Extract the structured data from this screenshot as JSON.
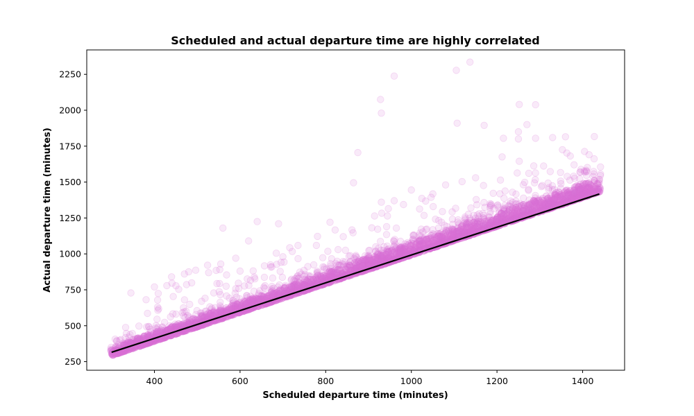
{
  "chart_data": {
    "type": "scatter",
    "title": "Scheduled and actual departure time are highly correlated",
    "xlabel": "Scheduled departure time (minutes)",
    "ylabel": "Actual departure time (minutes)",
    "xlim": [
      242,
      1498
    ],
    "ylim": [
      190,
      2420
    ],
    "xticks": [
      400,
      600,
      800,
      1000,
      1200,
      1400
    ],
    "yticks": [
      250,
      500,
      750,
      1000,
      1250,
      1500,
      1750,
      2000,
      2250
    ],
    "grid": false,
    "colors": {
      "points": "#DA70D6",
      "fit_line": "#000000"
    },
    "point_alpha": 0.15,
    "fit_line": {
      "x": [
        300,
        1439
      ],
      "y": [
        315,
        1417
      ]
    },
    "bulk": {
      "x_start": 300,
      "x_end": 1440,
      "y_at_start": 300,
      "y_at_end": 1440,
      "upward_spread": 60
    },
    "outliers": [
      {
        "x": 1137,
        "y": 2335
      },
      {
        "x": 1105,
        "y": 2278
      },
      {
        "x": 960,
        "y": 2238
      },
      {
        "x": 928,
        "y": 2075
      },
      {
        "x": 930,
        "y": 1980
      },
      {
        "x": 1252,
        "y": 2040
      },
      {
        "x": 1290,
        "y": 2038
      },
      {
        "x": 1107,
        "y": 1910
      },
      {
        "x": 1170,
        "y": 1895
      },
      {
        "x": 1270,
        "y": 1900
      },
      {
        "x": 1250,
        "y": 1850
      },
      {
        "x": 1250,
        "y": 1800
      },
      {
        "x": 1215,
        "y": 1805
      },
      {
        "x": 1290,
        "y": 1805
      },
      {
        "x": 1330,
        "y": 1810
      },
      {
        "x": 1360,
        "y": 1815
      },
      {
        "x": 1212,
        "y": 1675
      },
      {
        "x": 1415,
        "y": 1690
      },
      {
        "x": 875,
        "y": 1705
      },
      {
        "x": 865,
        "y": 1495
      },
      {
        "x": 1000,
        "y": 1445
      },
      {
        "x": 930,
        "y": 1360
      },
      {
        "x": 960,
        "y": 1370
      },
      {
        "x": 560,
        "y": 1180
      },
      {
        "x": 640,
        "y": 1225
      },
      {
        "x": 690,
        "y": 1210
      },
      {
        "x": 810,
        "y": 1220
      },
      {
        "x": 620,
        "y": 1090
      },
      {
        "x": 590,
        "y": 970
      },
      {
        "x": 555,
        "y": 930
      },
      {
        "x": 400,
        "y": 770
      },
      {
        "x": 440,
        "y": 840
      },
      {
        "x": 470,
        "y": 860
      },
      {
        "x": 480,
        "y": 875
      },
      {
        "x": 600,
        "y": 880
      },
      {
        "x": 700,
        "y": 980
      },
      {
        "x": 1080,
        "y": 1480
      },
      {
        "x": 1150,
        "y": 1530
      },
      {
        "x": 1380,
        "y": 1620
      }
    ]
  }
}
